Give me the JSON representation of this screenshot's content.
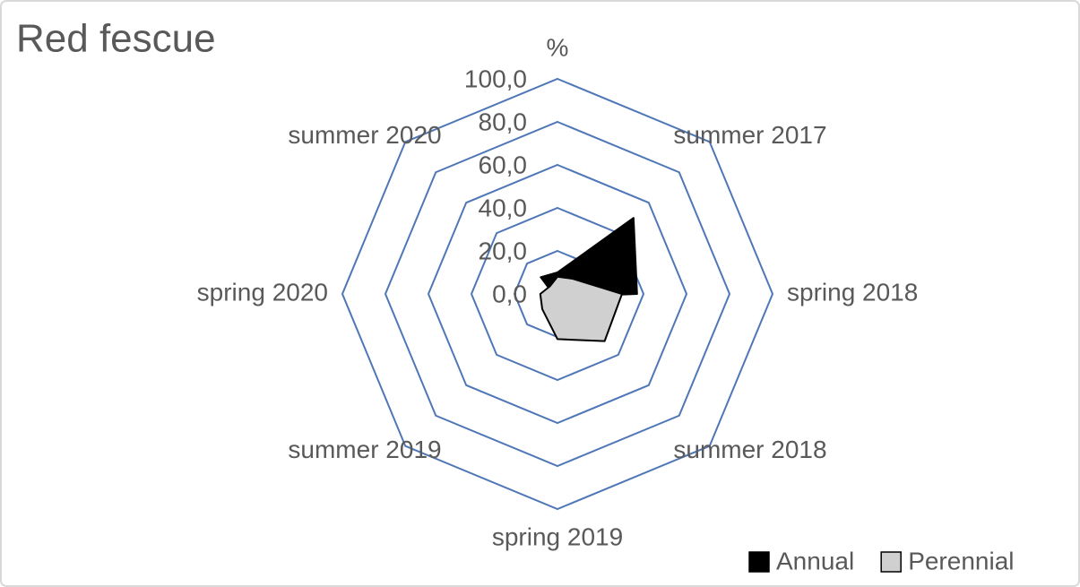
{
  "chart_data": {
    "type": "radar",
    "title": "Red fescue",
    "categories": [
      "%",
      "summer 2017",
      "spring 2018",
      "summer 2018",
      "spring 2019",
      "summer 2019",
      "spring 2020",
      "summer 2020"
    ],
    "series": [
      {
        "name": "Annual",
        "color": "#000000",
        "values": [
          10,
          50,
          37,
          2,
          1,
          1,
          2,
          11
        ]
      },
      {
        "name": "Perennial",
        "color": "#d0d0d0",
        "values": [
          8,
          10,
          30,
          31,
          21,
          10,
          8,
          5
        ]
      }
    ],
    "ylim": [
      0,
      100
    ],
    "yticks": [
      {
        "value": 0,
        "label": "0,0"
      },
      {
        "value": 20,
        "label": "20,0"
      },
      {
        "value": 40,
        "label": "40,0"
      },
      {
        "value": 60,
        "label": "60,0"
      },
      {
        "value": 80,
        "label": "80,0"
      },
      {
        "value": 100,
        "label": "100,0"
      }
    ],
    "grid_color": "#4f77b8",
    "legend": "bottom-right"
  }
}
